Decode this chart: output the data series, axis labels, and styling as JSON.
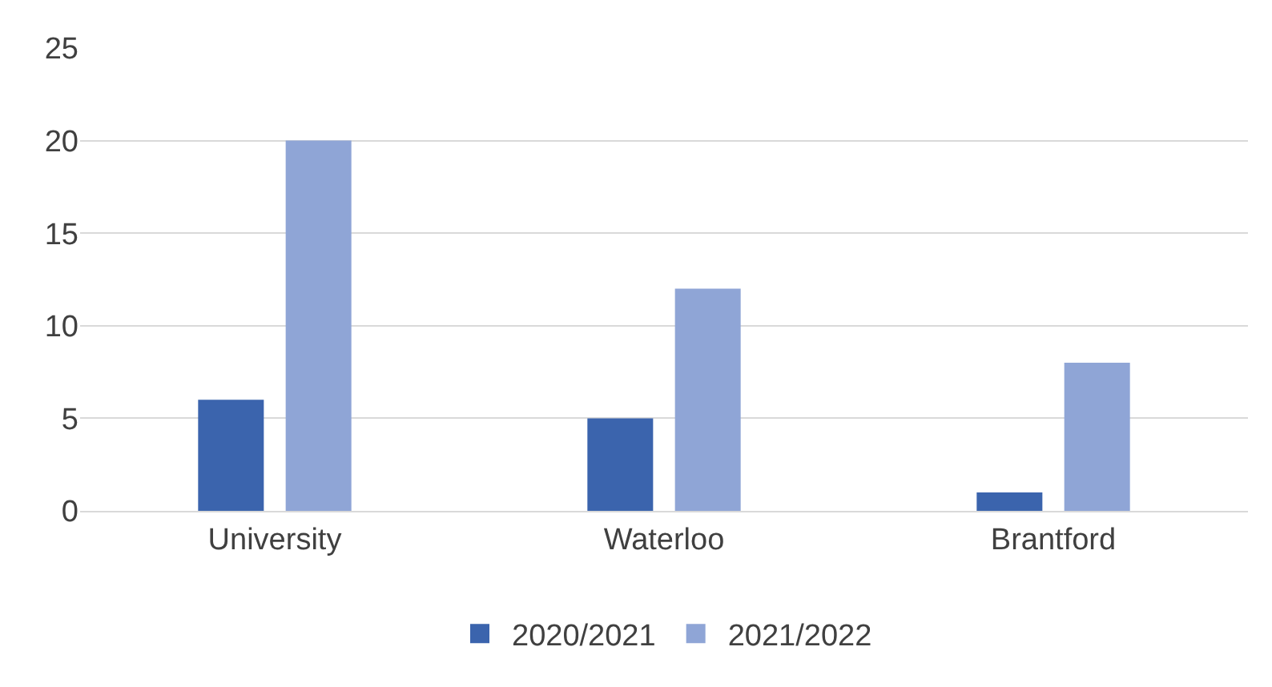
{
  "chart_data": {
    "type": "bar",
    "categories": [
      "University",
      "Waterloo",
      "Brantford"
    ],
    "series": [
      {
        "name": "2020/2021",
        "color": "#3b64ad",
        "values": [
          6,
          5,
          1
        ]
      },
      {
        "name": "2021/2022",
        "color": "#8fa5d6",
        "values": [
          20,
          12,
          8
        ]
      }
    ],
    "ylim": [
      0,
      25
    ],
    "yticks": [
      0,
      5,
      10,
      15,
      20,
      25
    ],
    "grid": "y",
    "legend": "bottom"
  }
}
